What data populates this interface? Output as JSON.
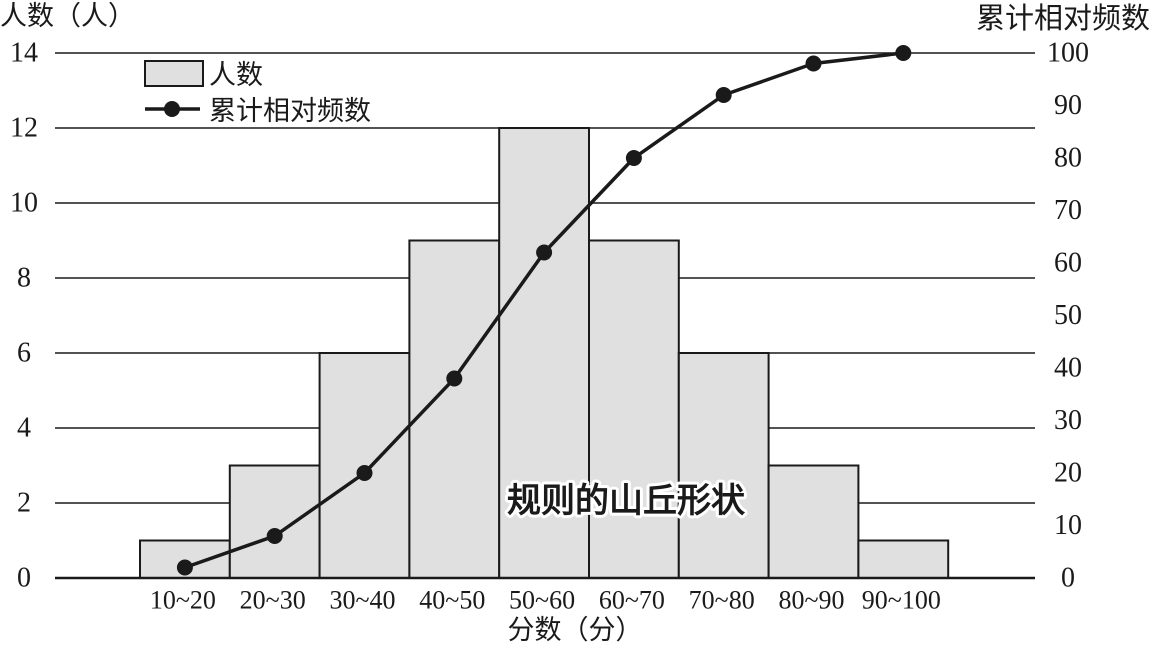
{
  "chart_data": {
    "type": "bar",
    "categories": [
      "10~20",
      "20~30",
      "30~40",
      "40~50",
      "50~60",
      "60~70",
      "70~80",
      "80~90",
      "90~100"
    ],
    "series": [
      {
        "name": "人数",
        "type": "bar",
        "y_axis": "left",
        "values": [
          1,
          3,
          6,
          9,
          12,
          9,
          6,
          3,
          1
        ]
      },
      {
        "name": "累计相对频数",
        "type": "line",
        "y_axis": "right",
        "values": [
          2,
          8,
          20,
          38,
          62,
          80,
          92,
          98,
          100
        ]
      }
    ],
    "xlabel": "分数（分）",
    "ylabel": "人数（人）",
    "y2label": "累计相对频数",
    "ylim": [
      0,
      14
    ],
    "y2lim": [
      0,
      100
    ],
    "yticks": [
      0,
      2,
      4,
      6,
      8,
      10,
      12,
      14
    ],
    "y2ticks": [
      0,
      10,
      20,
      30,
      40,
      50,
      60,
      70,
      80,
      90,
      100
    ],
    "grid": true,
    "legend": "top-left",
    "annotations": [
      "规则的山丘形状"
    ]
  },
  "colors": {
    "background": "#ffffff",
    "bar_fill": "#e0e0e0",
    "ink": "#1a1a1a"
  }
}
